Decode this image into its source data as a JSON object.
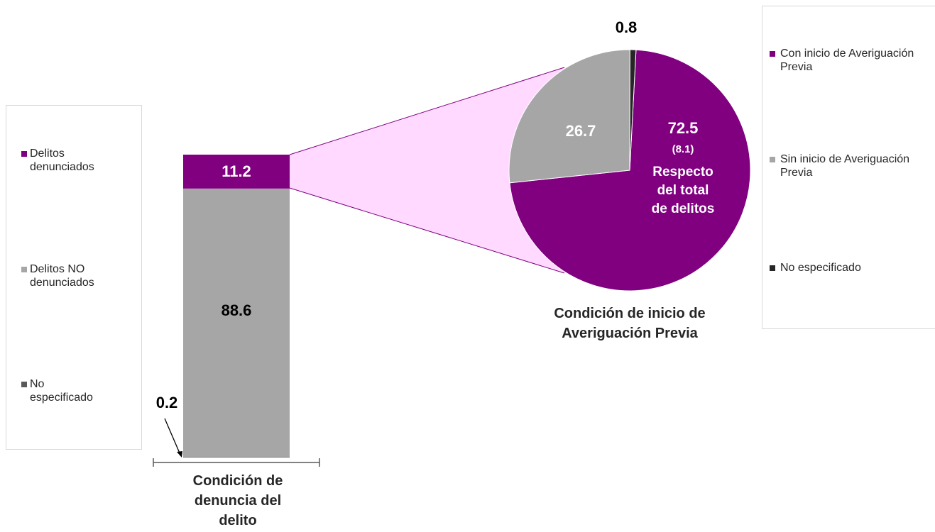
{
  "chart_data": [
    {
      "type": "stacked_bar",
      "categories": [
        "Condición de denuncia del delito"
      ],
      "series": [
        {
          "name": "Delitos denunciados",
          "color": "#800080",
          "values": [
            11.2
          ]
        },
        {
          "name": "Delitos NO denunciados",
          "color": "#a6a6a6",
          "values": [
            88.6
          ]
        },
        {
          "name": "No especificado",
          "color": "#595959",
          "values": [
            0.2
          ]
        }
      ],
      "ylim": [
        0,
        100
      ]
    },
    {
      "type": "pie",
      "title": "Condición de inicio de Averiguación Previa",
      "categories": [
        "Con inicio de Averiguación Previa",
        "Sin inicio de Averiguación Previa",
        "No especificado"
      ],
      "values": [
        72.5,
        26.7,
        0.8
      ],
      "colors": [
        "#800080",
        "#a6a6a6",
        "#262626"
      ],
      "annotations": [
        "(8.1)",
        "Respecto del total de delitos"
      ]
    }
  ]
}
